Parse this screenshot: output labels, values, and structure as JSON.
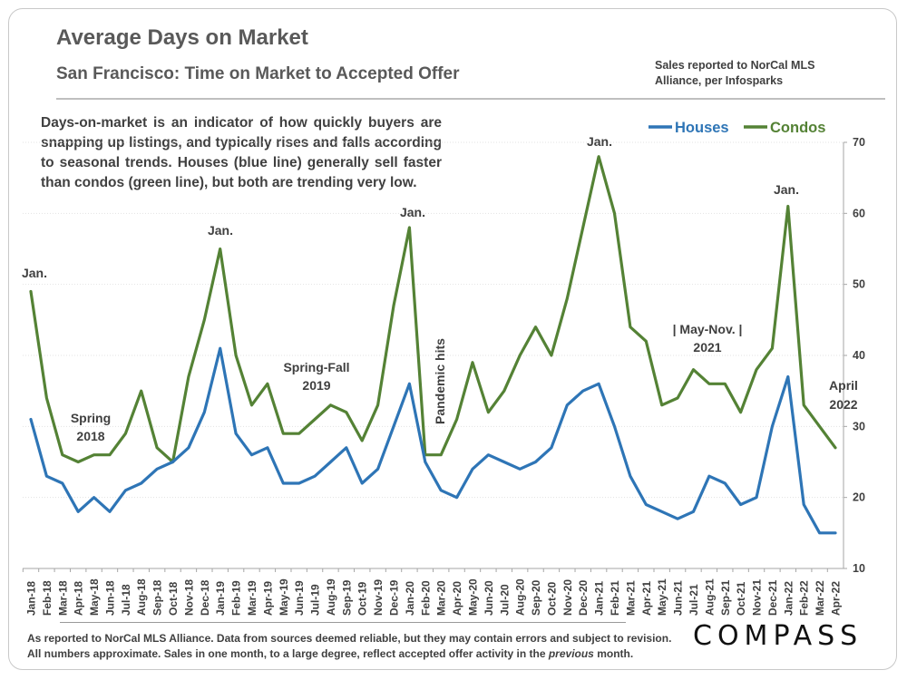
{
  "title": "Average Days on Market",
  "subtitle": "San Francisco: Time on Market to Accepted Offer",
  "source_line1": "Sales reported to NorCal MLS",
  "source_line2": "Alliance, per Infosparks",
  "description": "Days-on-market is an indicator of how quickly buyers are snapping up listings, and typically rises and falls according to seasonal trends. Houses (blue line) generally sell faster than condos (green line), but both are trending very low.",
  "footnote_line1": "As reported to NorCal MLS Alliance. Data from sources deemed reliable, but they may contain errors and subject to revision.",
  "footnote_line2_a": "All numbers approximate. Sales in one month, to a large degree, reflect accepted offer activity in the",
  "footnote_line2_em": "previous",
  "footnote_line2_b": "month.",
  "logo_text": "COMPASS",
  "chart_data": {
    "type": "line",
    "title": "Average Days on Market",
    "ylim": [
      10,
      70
    ],
    "yticks": [
      10,
      20,
      30,
      40,
      50,
      60,
      70
    ],
    "y_axis_side": "right",
    "grid": true,
    "legend_position": "top-right",
    "categories": [
      "Jan-18",
      "Feb-18",
      "Mar-18",
      "Apr-18",
      "May-18",
      "Jun-18",
      "Jul-18",
      "Aug-18",
      "Sep-18",
      "Oct-18",
      "Nov-18",
      "Dec-18",
      "Jan-19",
      "Feb-19",
      "Mar-19",
      "Apr-19",
      "May-19",
      "Jun-19",
      "Jul-19",
      "Aug-19",
      "Sep-19",
      "Oct-19",
      "Nov-19",
      "Dec-19",
      "Jan-20",
      "Feb-20",
      "Mar-20",
      "Apr-20",
      "May-20",
      "Jun-20",
      "Jul-20",
      "Aug-20",
      "Sep-20",
      "Oct-20",
      "Nov-20",
      "Dec-20",
      "Jan-21",
      "Feb-21",
      "Mar-21",
      "Apr-21",
      "May-21",
      "Jun-21",
      "Jul-21",
      "Aug-21",
      "Sep-21",
      "Oct-21",
      "Nov-21",
      "Dec-21",
      "Jan-22",
      "Feb-22",
      "Mar-22",
      "Apr-22"
    ],
    "series": [
      {
        "name": "Houses",
        "color": "#2e75b6",
        "values": [
          31,
          23,
          22,
          18,
          20,
          18,
          21,
          22,
          24,
          25,
          27,
          32,
          41,
          29,
          26,
          27,
          22,
          22,
          23,
          25,
          27,
          22,
          24,
          30,
          36,
          25,
          21,
          20,
          24,
          26,
          25,
          24,
          25,
          27,
          33,
          35,
          36,
          30,
          23,
          19,
          18,
          17,
          18,
          23,
          22,
          19,
          20,
          30,
          37,
          19,
          15,
          15
        ]
      },
      {
        "name": "Condos",
        "color": "#548235",
        "values": [
          49,
          34,
          26,
          25,
          26,
          26,
          29,
          35,
          27,
          25,
          37,
          45,
          55,
          40,
          33,
          36,
          29,
          29,
          31,
          33,
          32,
          28,
          33,
          47,
          58,
          26,
          26,
          31,
          39,
          32,
          35,
          40,
          44,
          40,
          48,
          58,
          68,
          60,
          44,
          42,
          33,
          34,
          38,
          36,
          36,
          32,
          38,
          41,
          61,
          33,
          30,
          27
        ]
      }
    ],
    "annotations": {
      "jan18": "Jan.",
      "spring18_a": "Spring",
      "spring18_b": "2018",
      "jan19": "Jan.",
      "springfall19_a": "Spring-Fall",
      "springfall19_b": "2019",
      "jan20": "Jan.",
      "pandemic": "Pandemic hits",
      "jan21": "Jan.",
      "maynov21_a": "|  May-Nov.  |",
      "maynov21_b": "2021",
      "jan22": "Jan.",
      "april22_a": "April",
      "april22_b": "2022"
    }
  }
}
